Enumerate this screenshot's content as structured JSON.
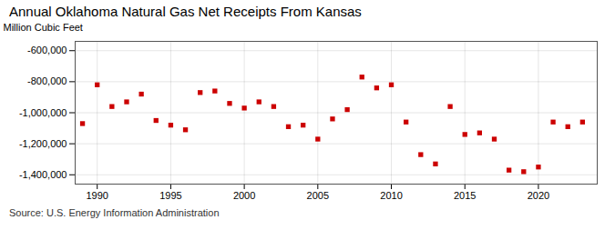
{
  "chart_data": {
    "type": "scatter",
    "title": "Annual Oklahoma Natural Gas Net Receipts From Kansas",
    "ylabel": "Million Cubic Feet",
    "source": "Source: U.S. Energy Information Administration",
    "x": [
      1989,
      1990,
      1991,
      1992,
      1993,
      1994,
      1995,
      1996,
      1997,
      1998,
      1999,
      2000,
      2001,
      2002,
      2003,
      2004,
      2005,
      2006,
      2007,
      2008,
      2009,
      2010,
      2011,
      2012,
      2013,
      2014,
      2015,
      2016,
      2017,
      2018,
      2019,
      2020,
      2021,
      2022,
      2023
    ],
    "values": [
      -1070000,
      -820000,
      -960000,
      -930000,
      -880000,
      -1050000,
      -1080000,
      -1110000,
      -870000,
      -860000,
      -940000,
      -970000,
      -930000,
      -960000,
      -1090000,
      -1080000,
      -1170000,
      -1040000,
      -980000,
      -770000,
      -840000,
      -820000,
      -1060000,
      -1270000,
      -1330000,
      -960000,
      -1140000,
      -1130000,
      -1170000,
      -1370000,
      -1380000,
      -1350000,
      -1060000,
      -1090000,
      -1060000
    ],
    "color": "#cc0000",
    "marker": "square",
    "xlim": [
      1988.5,
      2024
    ],
    "ylim": [
      -1460000,
      -540000
    ],
    "xticks": [
      1990,
      1995,
      2000,
      2005,
      2010,
      2015,
      2020
    ],
    "yticks": [
      {
        "value": -1400000,
        "label": "-1,400,000"
      },
      {
        "value": -1200000,
        "label": "-1,200,000"
      },
      {
        "value": -1000000,
        "label": "-1,000,000"
      },
      {
        "value": -800000,
        "label": "-800,000"
      },
      {
        "value": -600000,
        "label": "-600,000"
      }
    ],
    "grid": true
  }
}
